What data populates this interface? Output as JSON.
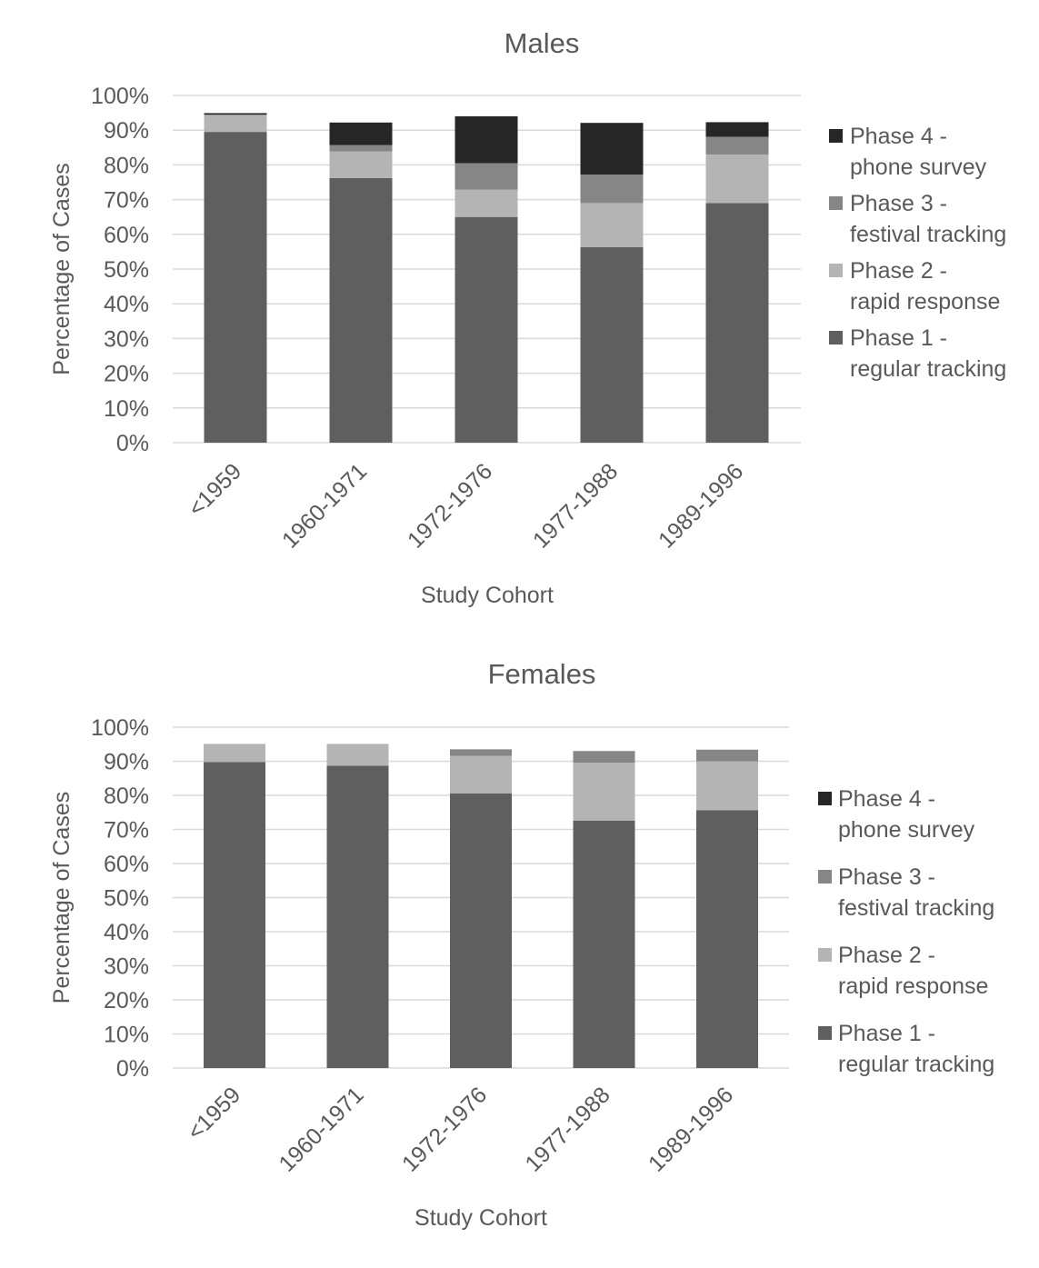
{
  "colors": {
    "phase1": "#5f5f5f",
    "phase2": "#b4b4b4",
    "phase3": "#868686",
    "phase4": "#262626",
    "gridline": "#d9d9d9",
    "text": "#595959"
  },
  "chart_data": [
    {
      "type": "bar",
      "stacked": true,
      "title": "Males",
      "xlabel": "Study Cohort",
      "ylabel": "Percentage of Cases",
      "ylim": [
        0,
        100
      ],
      "yticks": [
        "0%",
        "10%",
        "20%",
        "30%",
        "40%",
        "50%",
        "60%",
        "70%",
        "80%",
        "90%",
        "100%"
      ],
      "grid": true,
      "legend_position": "right",
      "categories": [
        "<1959",
        "1960-1971",
        "1972-1976",
        "1977-1988",
        "1989-1996"
      ],
      "series": [
        {
          "name": "Phase 1 - regular tracking",
          "key": "phase1",
          "values": [
            89.5,
            76.2,
            65.0,
            56.3,
            69.0
          ]
        },
        {
          "name": "Phase 2 - rapid response",
          "key": "phase2",
          "values": [
            4.8,
            7.7,
            7.9,
            12.7,
            14.0
          ]
        },
        {
          "name": "Phase 3 - festival tracking",
          "key": "phase3",
          "values": [
            0.2,
            1.8,
            7.6,
            8.2,
            5.1
          ]
        },
        {
          "name": "Phase 4 - phone survey",
          "key": "phase4",
          "values": [
            0.4,
            6.5,
            13.5,
            14.9,
            4.2
          ]
        }
      ],
      "legend": [
        {
          "key": "phase4",
          "line1": "Phase 4 -",
          "line2": "phone survey"
        },
        {
          "key": "phase3",
          "line1": "Phase 3 -",
          "line2": "festival tracking"
        },
        {
          "key": "phase2",
          "line1": "Phase 2 -",
          "line2": "rapid response"
        },
        {
          "key": "phase1",
          "line1": "Phase 1 -",
          "line2": "regular tracking"
        }
      ]
    },
    {
      "type": "bar",
      "stacked": true,
      "title": "Females",
      "xlabel": "Study Cohort",
      "ylabel": "Percentage of Cases",
      "ylim": [
        0,
        100
      ],
      "yticks": [
        "0%",
        "10%",
        "20%",
        "30%",
        "40%",
        "50%",
        "60%",
        "70%",
        "80%",
        "90%",
        "100%"
      ],
      "grid": true,
      "legend_position": "right",
      "categories": [
        "<1959",
        "1960-1971",
        "1972-1976",
        "1977-1988",
        "1989-1996"
      ],
      "series": [
        {
          "name": "Phase 1 - regular tracking",
          "key": "phase1",
          "values": [
            89.8,
            88.7,
            80.6,
            72.6,
            75.6
          ]
        },
        {
          "name": "Phase 2 - rapid response",
          "key": "phase2",
          "values": [
            5.3,
            6.4,
            11.0,
            17.0,
            14.4
          ]
        },
        {
          "name": "Phase 3 - festival tracking",
          "key": "phase3",
          "values": [
            0,
            0,
            1.9,
            3.4,
            3.4
          ]
        },
        {
          "name": "Phase 4 - phone survey",
          "key": "phase4",
          "values": [
            0,
            0,
            0,
            0,
            0
          ]
        }
      ],
      "legend": [
        {
          "key": "phase4",
          "line1": "Phase 4 -",
          "line2": "phone survey"
        },
        {
          "key": "phase3",
          "line1": "Phase 3 -",
          "line2": "festival tracking"
        },
        {
          "key": "phase2",
          "line1": "Phase 2 -",
          "line2": "rapid response"
        },
        {
          "key": "phase1",
          "line1": "Phase 1 -",
          "line2": "regular tracking"
        }
      ]
    }
  ]
}
